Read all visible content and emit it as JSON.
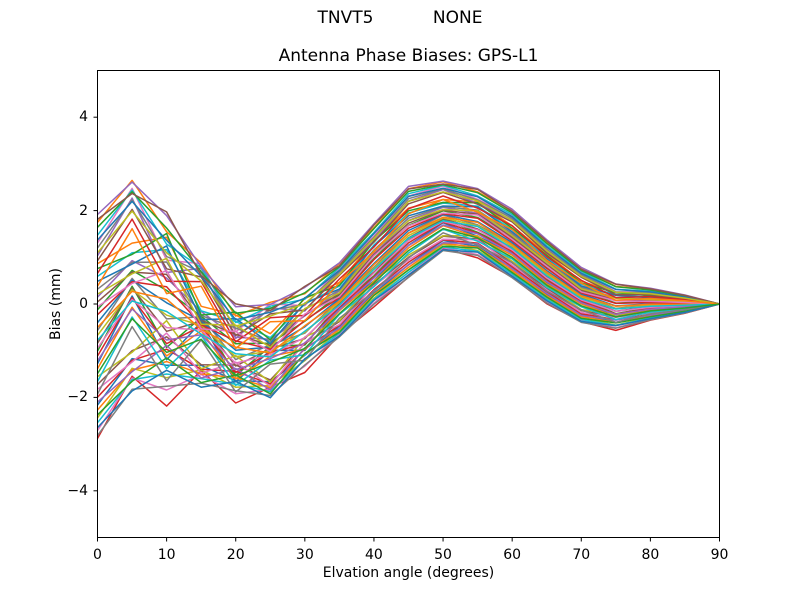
{
  "figure": {
    "suptitle": "TNVT5           NONE",
    "title": "Antenna Phase Biases: GPS-L1"
  },
  "chart_data": {
    "type": "line",
    "suptitle": "TNVT5           NONE",
    "title": "Antenna Phase Biases: GPS-L1",
    "xlabel": "Elvation angle (degrees)",
    "ylabel": "Bias (mm)",
    "xlim": [
      0,
      90
    ],
    "ylim": [
      -5,
      5
    ],
    "grid": false,
    "legend": "none",
    "x_ticks": [
      0,
      10,
      20,
      30,
      40,
      50,
      60,
      70,
      80,
      90
    ],
    "y_ticks": [
      -4,
      -2,
      0,
      2,
      4
    ],
    "x_tick_labels": [
      "0",
      "10",
      "20",
      "30",
      "40",
      "50",
      "60",
      "70",
      "80",
      "90"
    ],
    "y_tick_labels": [
      "−4",
      "−2",
      "0",
      "2",
      "4"
    ],
    "x": [
      0,
      5,
      10,
      15,
      20,
      25,
      30,
      35,
      40,
      45,
      50,
      55,
      60,
      65,
      70,
      75,
      80,
      85,
      90
    ],
    "series_count": 53,
    "mean": [
      -0.45,
      0.45,
      0.0,
      -0.4,
      -1.0,
      -0.95,
      -0.5,
      0.1,
      0.85,
      1.55,
      1.9,
      1.75,
      1.3,
      0.7,
      0.2,
      -0.05,
      0.0,
      0.0,
      0.0
    ],
    "upper_envelope": [
      2.0,
      2.7,
      2.5,
      1.4,
      0.3,
      0.0,
      0.45,
      0.9,
      1.8,
      2.6,
      2.7,
      2.5,
      2.0,
      1.4,
      0.8,
      0.45,
      0.3,
      0.2,
      0.0
    ],
    "lower_envelope": [
      -2.9,
      -2.1,
      -2.0,
      -1.7,
      -2.2,
      -1.9,
      -1.4,
      -0.9,
      -0.1,
      0.55,
      1.2,
      1.0,
      0.5,
      0.0,
      -0.45,
      -0.55,
      -0.35,
      -0.2,
      0.0
    ],
    "series_model": {
      "count": 53,
      "spread": [
        2.45,
        2.2,
        2.0,
        1.2,
        1.0,
        0.95,
        0.9,
        0.8,
        0.9,
        1.0,
        0.75,
        0.75,
        0.75,
        0.7,
        0.6,
        0.5,
        0.35,
        0.2,
        0.0
      ],
      "wiggle": [
        0.0,
        0.5,
        -0.55,
        0.45,
        -0.35,
        0.3,
        -0.2,
        0.1,
        -0.05,
        0.05,
        0.1,
        -0.05,
        0.05,
        0.0,
        0.05,
        -0.05,
        0.0,
        0.0,
        0.0
      ],
      "a_step": 0.618034,
      "a_seed": 0.15,
      "w_step": 0.7548,
      "w_seed": 0.42
    },
    "colors": [
      "#1f77b4",
      "#ff7f0e",
      "#2ca02c",
      "#d62728",
      "#9467bd",
      "#8c564b",
      "#e377c2",
      "#7f7f7f",
      "#bcbd22",
      "#17becf"
    ],
    "axis_color": "#000000",
    "background_color": "#ffffff",
    "line_width": 1.5
  }
}
